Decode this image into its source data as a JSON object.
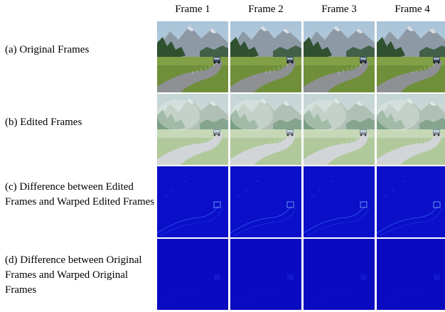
{
  "columns": [
    "Frame 1",
    "Frame 2",
    "Frame 3",
    "Frame 4"
  ],
  "rows": [
    {
      "label": "(a) Original Frames",
      "kind": "original"
    },
    {
      "label": "(b) Edited Frames",
      "kind": "edited"
    },
    {
      "label": "(c) Difference between Edited Frames and Warped Edited Frames",
      "kind": "diff-edited"
    },
    {
      "label": "(d) Difference between Original Frames and Warped Original Frames",
      "kind": "diff-original"
    }
  ]
}
